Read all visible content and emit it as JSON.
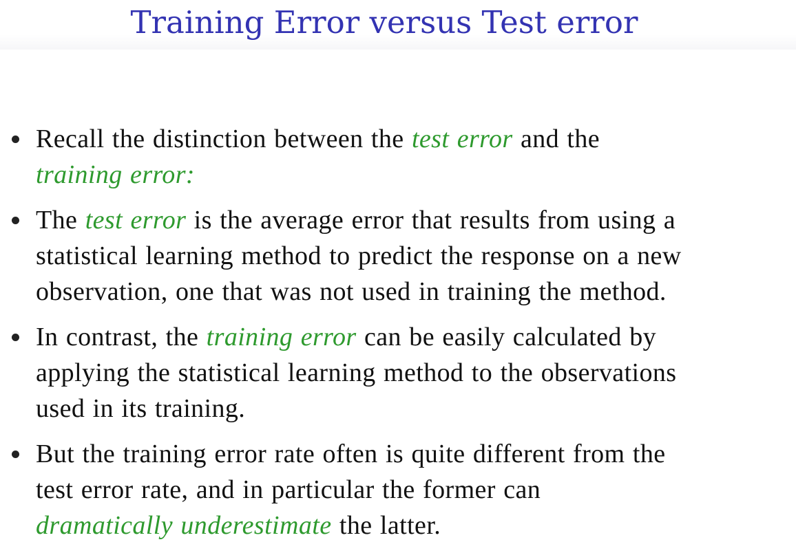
{
  "title": "Training Error versus Test error",
  "colors": {
    "title": "#3333b2",
    "emphasis": "#2e9a2e",
    "text": "#111111"
  },
  "bullets": [
    {
      "lines": [
        [
          "Recall the distinction between the ",
          "test error",
          " and the"
        ],
        [
          "",
          "training error:",
          ""
        ]
      ]
    },
    {
      "lines": [
        [
          "The ",
          "test error",
          " is the average error that results from using a"
        ],
        [
          "statistical learning method to predict the response on a new",
          "",
          ""
        ],
        [
          "observation, one that was not used in training the method.",
          "",
          ""
        ]
      ]
    },
    {
      "lines": [
        [
          "In contrast, the ",
          "training error",
          " can be easily calculated by"
        ],
        [
          "applying the statistical learning method to the observations",
          "",
          ""
        ],
        [
          "used in its training.",
          "",
          ""
        ]
      ]
    },
    {
      "lines": [
        [
          "But the training error rate often is quite different from the",
          "",
          ""
        ],
        [
          "test error rate, and in particular the former can",
          "",
          ""
        ],
        [
          "",
          "dramatically underestimate",
          " the latter."
        ]
      ]
    }
  ]
}
